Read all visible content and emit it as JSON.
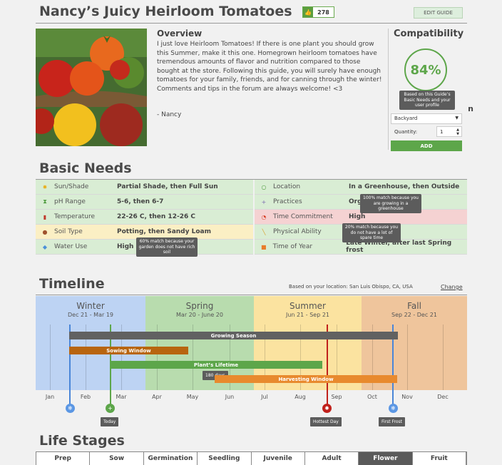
{
  "header": {
    "title": "Nancy’s Juicy Heirloom Tomatoes",
    "likes": "278",
    "edit_label": "EDIT GUIDE"
  },
  "overview": {
    "title": "Overview",
    "text": "I just love Heirloom Tomatoes! If there is one plant you should grow this Summer, make it this one. Homegrown heirloom tomatoes have tremendous amounts of flavor and nutrition compared to those bought at the store. Following this guide, you will surely have enough tomatoes for your family, friends, and for canning through the winter! Comments and tips in the forum are always welcome! <3",
    "signature": "- Nancy"
  },
  "compatibility": {
    "title": "Compatibility",
    "percent": "84%",
    "tooltip": "Based on this Guide’s Basic Needs and your user profile",
    "location_value": "Backyard",
    "quantity_label": "Quantity:",
    "quantity_value": "1",
    "add_label": "ADD"
  },
  "basic_needs": {
    "title": "Basic Needs",
    "left": [
      {
        "icon": "sun-icon",
        "glyph": "✹",
        "color": "#e8b020",
        "label": "Sun/Shade",
        "value": "Partial Shade, then Full Sun",
        "bg": "#d9edd4"
      },
      {
        "icon": "ph-icon",
        "glyph": "⧗",
        "color": "#4a9a3a",
        "label": "pH Range",
        "value": "5-6, then 6-7",
        "bg": "#d9edd4"
      },
      {
        "icon": "thermometer-icon",
        "glyph": "▮",
        "color": "#c0392b",
        "label": "Temperature",
        "value": "22-26 C, then 12-26 C",
        "bg": "#d9edd4"
      },
      {
        "icon": "soil-icon",
        "glyph": "●",
        "color": "#a0522d",
        "label": "Soil Type",
        "value": "Potting, then Sandy Loam",
        "bg": "#fbefc4"
      },
      {
        "icon": "water-drop-icon",
        "glyph": "◆",
        "color": "#4a90d9",
        "label": "Water Use",
        "value": "High",
        "bg": "#d9edd4"
      }
    ],
    "right": [
      {
        "icon": "location-icon",
        "glyph": "○",
        "color": "#4a9a3a",
        "label": "Location",
        "value": "In a Greenhouse, then Outside",
        "bg": "#d9edd4"
      },
      {
        "icon": "practices-icon",
        "glyph": "+",
        "color": "#7a6ab0",
        "label": "Practices",
        "value": "Org",
        "bg": "#d9edd4"
      },
      {
        "icon": "clock-icon",
        "glyph": "◔",
        "color": "#d9442b",
        "label": "Time Commitment",
        "value": "High",
        "bg": "#f5d2d2"
      },
      {
        "icon": "trowel-icon",
        "glyph": "╲",
        "color": "#d9a02b",
        "label": "Physical Ability",
        "value": "",
        "bg": "#d9edd4"
      },
      {
        "icon": "calendar-icon",
        "glyph": "■",
        "color": "#e87d2b",
        "label": "Time of Year",
        "value": "Late Winter, after last Spring frost",
        "bg": "#d9edd4"
      }
    ],
    "tip_soil": "60% match because your garden does not have rich soil",
    "tip_location": "100% match because you are growing in a greenhouse",
    "tip_time": "20% match because you do not have a lot of spare time"
  },
  "timeline": {
    "title": "Timeline",
    "location_text": "Based on your location: San Luis Obispo, CA, USA",
    "change_label": "Change",
    "seasons": [
      {
        "name": "Winter",
        "dates": "Dec 21 - Mar 19",
        "color": "#bdd3f3"
      },
      {
        "name": "Spring",
        "dates": "Mar 20 - June 20",
        "color": "#b8dcae"
      },
      {
        "name": "Summer",
        "dates": "Jun 21 - Sep 21",
        "color": "#fbe3a0"
      },
      {
        "name": "Fall",
        "dates": "Sep 22 - Dec 21",
        "color": "#efc59c"
      }
    ],
    "months": [
      "Jan",
      "Feb",
      "Mar",
      "Apr",
      "May",
      "Jun",
      "Jul",
      "Aug",
      "Sep",
      "Oct",
      "Nov",
      "Dec"
    ],
    "bars": {
      "growing_season": "Growing Season",
      "sowing_window": "Sowing Window",
      "plants_lifetime": "Plant’s Lifetime",
      "days": "180 days",
      "harvesting_window": "Harvesting Window"
    },
    "markers": {
      "today": "Today",
      "hottest_day": "Hottest Day",
      "first_frost": "First Frost"
    }
  },
  "life_stages": {
    "title": "Life Stages",
    "stages": [
      "Prep",
      "Sow",
      "Germination",
      "Seedling",
      "Juvenile",
      "Adult",
      "Flower",
      "Fruit"
    ],
    "active": "Flower"
  },
  "colors": {
    "accent_green": "#5da64a",
    "tooltip": "#5c5c5c"
  }
}
